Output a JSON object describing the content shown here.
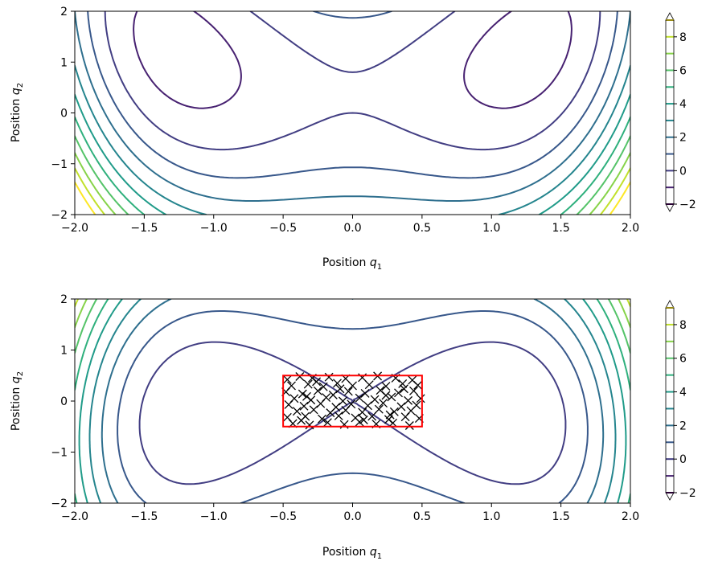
{
  "chart_data": [
    {
      "type": "contour",
      "xlabel": "Position",
      "xlabel_sub": "1",
      "ylabel": "Position",
      "ylabel_sub": "2",
      "xlim": [
        -2,
        2
      ],
      "ylim": [
        -2,
        2
      ],
      "xticks": [
        -2.0,
        -1.5,
        -1.0,
        -0.5,
        0.0,
        0.5,
        1.0,
        1.5,
        2.0
      ],
      "xtick_labels": [
        "−2.0",
        "−1.5",
        "−1.0",
        "−0.5",
        "0.0",
        "0.5",
        "1.0",
        "1.5",
        "2.0"
      ],
      "yticks": [
        2,
        1,
        0,
        -1,
        -2
      ],
      "ytick_labels": [
        "2",
        "1",
        "0",
        "−1",
        "−2"
      ],
      "potential": "0.7*q1^4 - 1.6*q1^2 + 0.5*q2^2 - 0.4*q2 - 0.5*q1^2*q2",
      "levels": [
        -2,
        -1,
        0,
        1,
        2,
        3,
        4,
        5,
        6,
        7,
        8,
        9
      ],
      "colorbar": {
        "ticks": [
          8,
          6,
          4,
          2,
          0,
          -2
        ],
        "tick_labels": [
          "8",
          "6",
          "4",
          "2",
          "0",
          "−2"
        ],
        "extend": "both"
      },
      "box": null,
      "samples": []
    },
    {
      "type": "contour",
      "xlabel": "Position",
      "xlabel_sub": "1",
      "ylabel": "Position",
      "ylabel_sub": "2",
      "xlim": [
        -2,
        2
      ],
      "ylim": [
        -2,
        2
      ],
      "xticks": [
        -2.0,
        -1.5,
        -1.0,
        -0.5,
        0.0,
        0.5,
        1.0,
        1.5,
        2.0
      ],
      "xtick_labels": [
        "−2.0",
        "−1.5",
        "−1.0",
        "−0.5",
        "0.0",
        "0.5",
        "1.0",
        "1.5",
        "2.0"
      ],
      "yticks": [
        2,
        1,
        0,
        -1,
        -2
      ],
      "ytick_labels": [
        "2",
        "1",
        "0",
        "−1",
        "−2"
      ],
      "potential": "0.7*q1^4 - 1.6*q1^2 + 0.5*q2^2 + 0.2*q1^2*q2",
      "levels": [
        -2,
        -1,
        0,
        1,
        2,
        3,
        4,
        5,
        6,
        7,
        8,
        9
      ],
      "colorbar": {
        "ticks": [
          8,
          6,
          4,
          2,
          0,
          -2
        ],
        "tick_labels": [
          "8",
          "6",
          "4",
          "2",
          "0",
          "−2"
        ],
        "extend": "both"
      },
      "box": {
        "x": [
          -0.5,
          0.5
        ],
        "y": [
          -0.5,
          0.5
        ],
        "color": "#ff0000"
      },
      "samples": [
        [
          -0.47,
          0.42
        ],
        [
          -0.38,
          0.48
        ],
        [
          -0.29,
          0.45
        ],
        [
          -0.17,
          0.47
        ],
        [
          -0.05,
          0.44
        ],
        [
          0.07,
          0.46
        ],
        [
          0.18,
          0.49
        ],
        [
          0.31,
          0.45
        ],
        [
          0.43,
          0.41
        ],
        [
          -0.44,
          0.3
        ],
        [
          -0.32,
          0.33
        ],
        [
          -0.21,
          0.28
        ],
        [
          -0.11,
          0.35
        ],
        [
          0.0,
          0.3
        ],
        [
          0.12,
          0.32
        ],
        [
          0.24,
          0.29
        ],
        [
          0.36,
          0.34
        ],
        [
          0.47,
          0.31
        ],
        [
          -0.48,
          0.18
        ],
        [
          -0.36,
          0.14
        ],
        [
          -0.25,
          0.2
        ],
        [
          -0.14,
          0.12
        ],
        [
          -0.03,
          0.19
        ],
        [
          0.09,
          0.15
        ],
        [
          0.2,
          0.21
        ],
        [
          0.33,
          0.16
        ],
        [
          0.44,
          0.2
        ],
        [
          -0.42,
          0.05
        ],
        [
          -0.3,
          0.02
        ],
        [
          -0.19,
          0.07
        ],
        [
          -0.07,
          0.0
        ],
        [
          0.05,
          0.06
        ],
        [
          0.16,
          0.03
        ],
        [
          0.28,
          0.08
        ],
        [
          0.4,
          0.01
        ],
        [
          0.49,
          0.05
        ],
        [
          -0.46,
          -0.07
        ],
        [
          -0.35,
          -0.1
        ],
        [
          -0.23,
          -0.05
        ],
        [
          -0.12,
          -0.12
        ],
        [
          -0.01,
          -0.06
        ],
        [
          0.11,
          -0.09
        ],
        [
          0.22,
          -0.04
        ],
        [
          0.35,
          -0.11
        ],
        [
          0.46,
          -0.08
        ],
        [
          -0.4,
          -0.2
        ],
        [
          -0.28,
          -0.17
        ],
        [
          -0.16,
          -0.23
        ],
        [
          -0.05,
          -0.18
        ],
        [
          0.07,
          -0.22
        ],
        [
          0.19,
          -0.16
        ],
        [
          0.3,
          -0.21
        ],
        [
          0.42,
          -0.19
        ],
        [
          -0.47,
          -0.32
        ],
        [
          -0.34,
          -0.3
        ],
        [
          -0.22,
          -0.35
        ],
        [
          -0.1,
          -0.29
        ],
        [
          0.02,
          -0.33
        ],
        [
          0.14,
          -0.3
        ],
        [
          0.26,
          -0.36
        ],
        [
          0.38,
          -0.31
        ],
        [
          0.48,
          -0.34
        ],
        [
          -0.43,
          -0.44
        ],
        [
          -0.31,
          -0.47
        ],
        [
          -0.18,
          -0.42
        ],
        [
          -0.06,
          -0.46
        ],
        [
          0.05,
          -0.41
        ],
        [
          0.17,
          -0.45
        ],
        [
          0.29,
          -0.43
        ],
        [
          0.41,
          -0.48
        ],
        [
          -0.26,
          0.38
        ],
        [
          0.27,
          -0.27
        ],
        [
          -0.37,
          -0.38
        ],
        [
          0.37,
          0.24
        ],
        [
          -0.09,
          0.24
        ],
        [
          0.08,
          -0.37
        ],
        [
          -0.33,
          0.09
        ],
        [
          0.24,
          0.11
        ]
      ]
    }
  ]
}
